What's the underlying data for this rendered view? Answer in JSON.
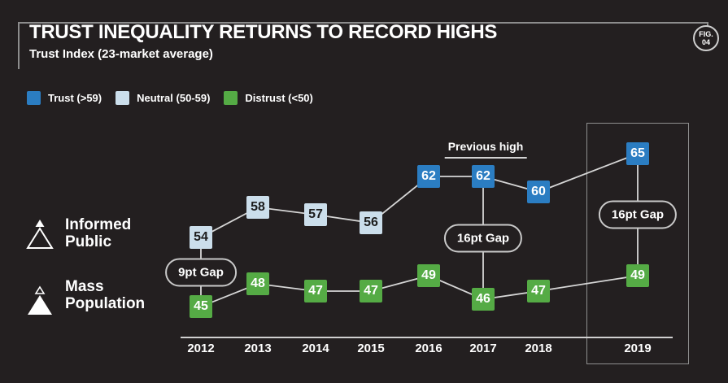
{
  "figure_badge": {
    "line1": "FIG.",
    "line2": "04"
  },
  "header": {
    "title": "TRUST INEQUALITY RETURNS TO RECORD HIGHS",
    "subtitle": "Trust Index (23-market average)"
  },
  "legend": {
    "items": [
      {
        "label": "Trust (>59)",
        "key": "trust"
      },
      {
        "label": "Neutral (50-59)",
        "key": "neutral"
      },
      {
        "label": "Distrust (<50)",
        "key": "distrust"
      }
    ]
  },
  "colors": {
    "trust": "#2b7dc2",
    "neutral": "#cbdeeb",
    "distrust": "#55ab45",
    "background": "#231f20",
    "line": "#d6d6d6",
    "neutral_text": "#1c1c1c",
    "box_text": "#ffffff"
  },
  "row_labels": [
    {
      "line1": "Informed",
      "line2": "Public"
    },
    {
      "line1": "Mass",
      "line2": "Population"
    }
  ],
  "chart_data": {
    "type": "line",
    "x": [
      "2012",
      "2013",
      "2014",
      "2015",
      "2016",
      "2017",
      "2018",
      "2019"
    ],
    "series": [
      {
        "name": "Informed Public",
        "values": [
          54,
          58,
          57,
          56,
          62,
          62,
          60,
          65
        ]
      },
      {
        "name": "Mass Population",
        "values": [
          45,
          48,
          47,
          47,
          49,
          46,
          47,
          49
        ]
      }
    ],
    "bands": {
      "trust": ">59",
      "neutral": "50-59",
      "distrust": "<50"
    },
    "gap_annotations": [
      {
        "year": "2012",
        "label": "9pt Gap"
      },
      {
        "year": "2017",
        "label": "16pt Gap"
      },
      {
        "year": "2019",
        "label": "16pt Gap"
      }
    ],
    "previous_high_label": "Previous high",
    "previous_high_year": "2017",
    "highlighted_year": "2019",
    "title": "TRUST INEQUALITY RETURNS TO RECORD HIGHS",
    "subtitle": "Trust Index (23-market average)",
    "ylim": [
      40,
      70
    ],
    "grid": false,
    "legend_position": "top-left"
  }
}
